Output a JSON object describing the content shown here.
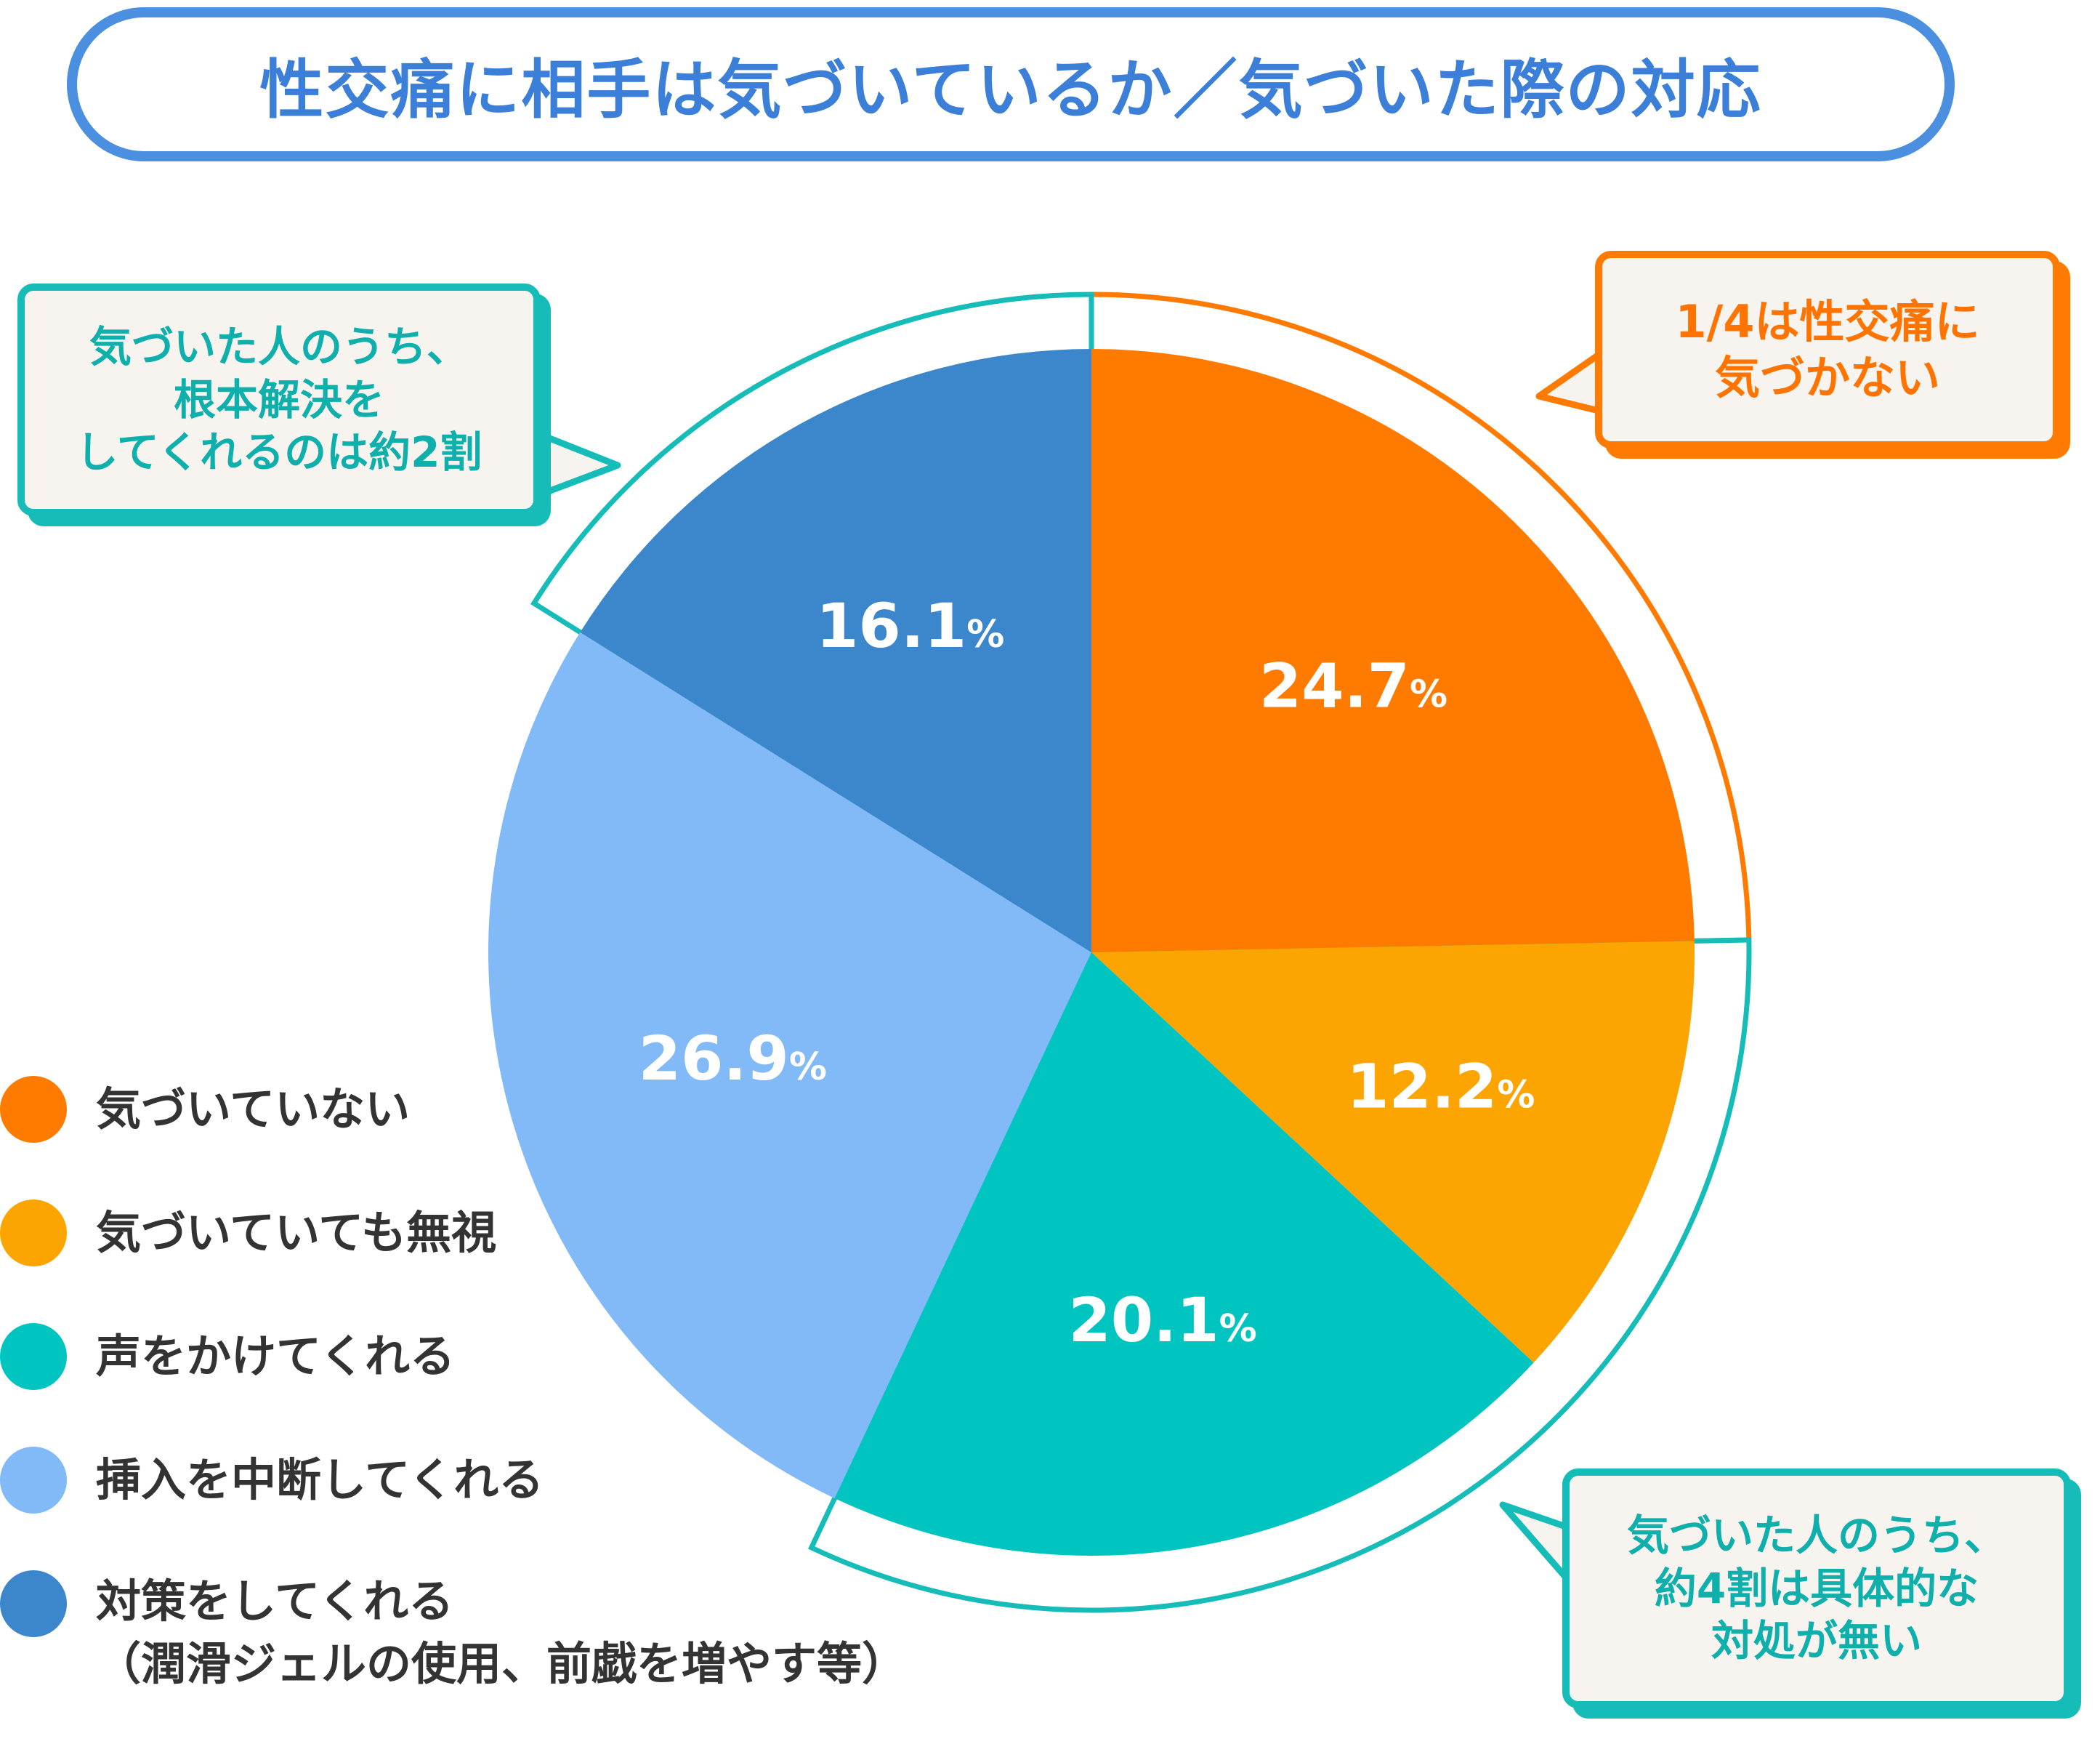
{
  "title": "性交痛に相手は気づいているか／気づいた際の対応",
  "chart_data": {
    "type": "pie",
    "title": "性交痛に相手は気づいているか／気づいた際の対応",
    "categories": [
      "気づいていない",
      "気づいていても無視",
      "声をかけてくれる",
      "挿入を中断してくれる",
      "対策をしてくれる\n（潤滑ジェルの使用、前戯を増やす等）"
    ],
    "values": [
      24.7,
      12.2,
      20.1,
      26.9,
      16.1
    ],
    "value_labels": [
      "24.7",
      "12.2",
      "20.1",
      "26.9",
      "16.1"
    ],
    "unit": "%",
    "colors": [
      "#ff7b00",
      "#fca500",
      "#00c4c0",
      "#82b9f7",
      "#3c87cc"
    ],
    "legend_placement": "bottom-left",
    "start_angle": "top (12 o'clock), clockwise"
  },
  "callouts": {
    "top_left": "気づいた人のうち、\n根本解決を\nしてくれるのは約2割",
    "top_right": "1/4は性交痛に\n気づかない",
    "bottom_right": "気づいた人のうち、\n約4割は具体的な\n対処が無い"
  },
  "colors": {
    "title_border": "#4a8fe0",
    "title_text": "#3b7fd9",
    "callout_teal": "#16bdb8",
    "callout_orange": "#ff7a00",
    "callout_background": "#f7f4f0"
  }
}
